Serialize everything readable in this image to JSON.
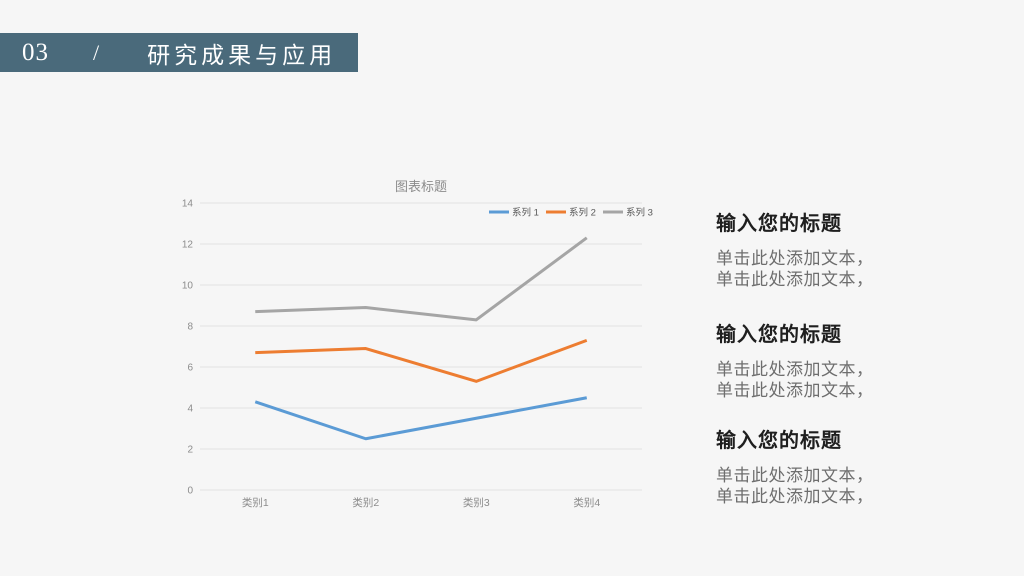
{
  "background": "#F6F6F6",
  "header": {
    "number": "03",
    "separator": "/",
    "title": "研究成果与应用",
    "bar_color": "#4A6A7B",
    "text_color": "#FFFFFF"
  },
  "chart_data": {
    "type": "line",
    "title": "图表标题",
    "categories": [
      "类别1",
      "类别2",
      "类别3",
      "类别4"
    ],
    "series": [
      {
        "name": "系列 1",
        "color": "#5B9BD5",
        "values": [
          4.3,
          2.5,
          3.5,
          4.5
        ]
      },
      {
        "name": "系列 2",
        "color": "#ED7D31",
        "values": [
          6.7,
          6.9,
          5.3,
          7.3
        ]
      },
      {
        "name": "系列 3",
        "color": "#A5A5A5",
        "values": [
          8.7,
          8.9,
          8.3,
          12.3
        ]
      }
    ],
    "ylim": [
      0,
      14
    ],
    "ytick_step": 2,
    "grid": true,
    "legend_position": "top-right",
    "axis_label_color": "#8C8C8C",
    "gridline_color": "#E1E1E1"
  },
  "sections": [
    {
      "title": "输入您的标题",
      "lines": [
        "单击此处添加文本，",
        "单击此处添加文本，"
      ]
    },
    {
      "title": "输入您的标题",
      "lines": [
        "单击此处添加文本，",
        "单击此处添加文本，"
      ]
    },
    {
      "title": "输入您的标题",
      "lines": [
        "单击此处添加文本，",
        "单击此处添加文本，"
      ]
    }
  ]
}
